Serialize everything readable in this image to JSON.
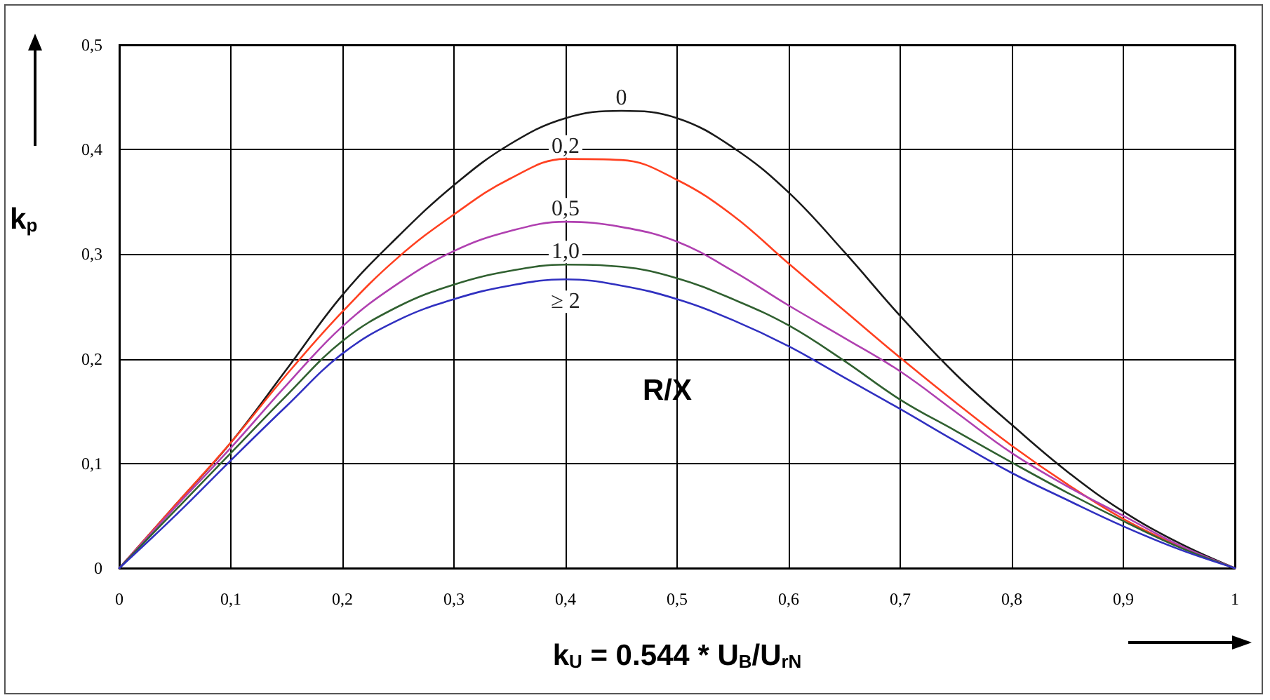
{
  "chart_data": {
    "type": "line",
    "xlabel": "k$_{U}$ = 0.544 * U$_{B}$/U$_{rN}$",
    "ylabel": "k$_{p}$",
    "x": [
      0,
      0.05,
      0.1,
      0.15,
      0.2,
      0.25,
      0.3,
      0.35,
      0.4,
      0.45,
      0.5,
      0.55,
      0.6,
      0.65,
      0.7,
      0.75,
      0.8,
      0.85,
      0.9,
      0.95,
      1
    ],
    "series": [
      {
        "name": "0",
        "color": "#1a1a1a",
        "values": [
          0,
          0.06,
          0.12,
          0.19,
          0.261,
          0.317,
          0.366,
          0.405,
          0.43,
          0.437,
          0.43,
          0.402,
          0.359,
          0.302,
          0.241,
          0.185,
          0.137,
          0.092,
          0.054,
          0.024,
          0
        ]
      },
      {
        "name": "0,2",
        "color": "#ff4020",
        "values": [
          0,
          0.06,
          0.12,
          0.185,
          0.245,
          0.297,
          0.338,
          0.372,
          0.391,
          0.39,
          0.371,
          0.337,
          0.291,
          0.246,
          0.201,
          0.158,
          0.117,
          0.08,
          0.047,
          0.021,
          0
        ]
      },
      {
        "name": "0,5",
        "color": "#b040b0",
        "values": [
          0,
          0.058,
          0.115,
          0.175,
          0.231,
          0.272,
          0.303,
          0.322,
          0.331,
          0.326,
          0.312,
          0.284,
          0.251,
          0.22,
          0.188,
          0.149,
          0.11,
          0.078,
          0.05,
          0.022,
          0
        ]
      },
      {
        "name": "1,0",
        "color": "#306030",
        "values": [
          0,
          0.055,
          0.11,
          0.165,
          0.217,
          0.25,
          0.271,
          0.284,
          0.29,
          0.288,
          0.277,
          0.257,
          0.232,
          0.198,
          0.161,
          0.131,
          0.101,
          0.072,
          0.045,
          0.02,
          0
        ]
      },
      {
        "name": "≥ 2",
        "color": "#3030c0",
        "values": [
          0,
          0.05,
          0.103,
          0.155,
          0.205,
          0.237,
          0.257,
          0.27,
          0.276,
          0.27,
          0.257,
          0.237,
          0.212,
          0.182,
          0.152,
          0.121,
          0.091,
          0.065,
          0.04,
          0.018,
          0
        ]
      }
    ],
    "annotations": [
      "R/X"
    ],
    "xlim": [
      0,
      1
    ],
    "xticks": [
      0,
      {
        "value": 0.1,
        "label": "0,1"
      },
      {
        "value": 0.2,
        "label": "0,2"
      },
      {
        "value": 0.3,
        "label": "0,3"
      },
      {
        "value": 0.4,
        "label": "0,4"
      },
      {
        "value": 0.5,
        "label": "0,5"
      },
      {
        "value": 0.6,
        "label": "0,6"
      },
      {
        "value": 0.7,
        "label": "0,7"
      },
      {
        "value": 0.8,
        "label": "0,8"
      },
      {
        "value": 0.9,
        "label": "0,9"
      },
      1
    ],
    "ylim": [
      0,
      0.5
    ],
    "yticks": [
      0,
      {
        "value": 0.1,
        "label": "0,1"
      },
      {
        "value": 0.2,
        "label": "0,2"
      },
      {
        "value": 0.3,
        "label": "0,3"
      },
      {
        "value": 0.4,
        "label": "0,4"
      },
      {
        "value": 0.5,
        "label": "0,5"
      }
    ],
    "grid": true,
    "marker": "none",
    "line_style": "solid"
  }
}
